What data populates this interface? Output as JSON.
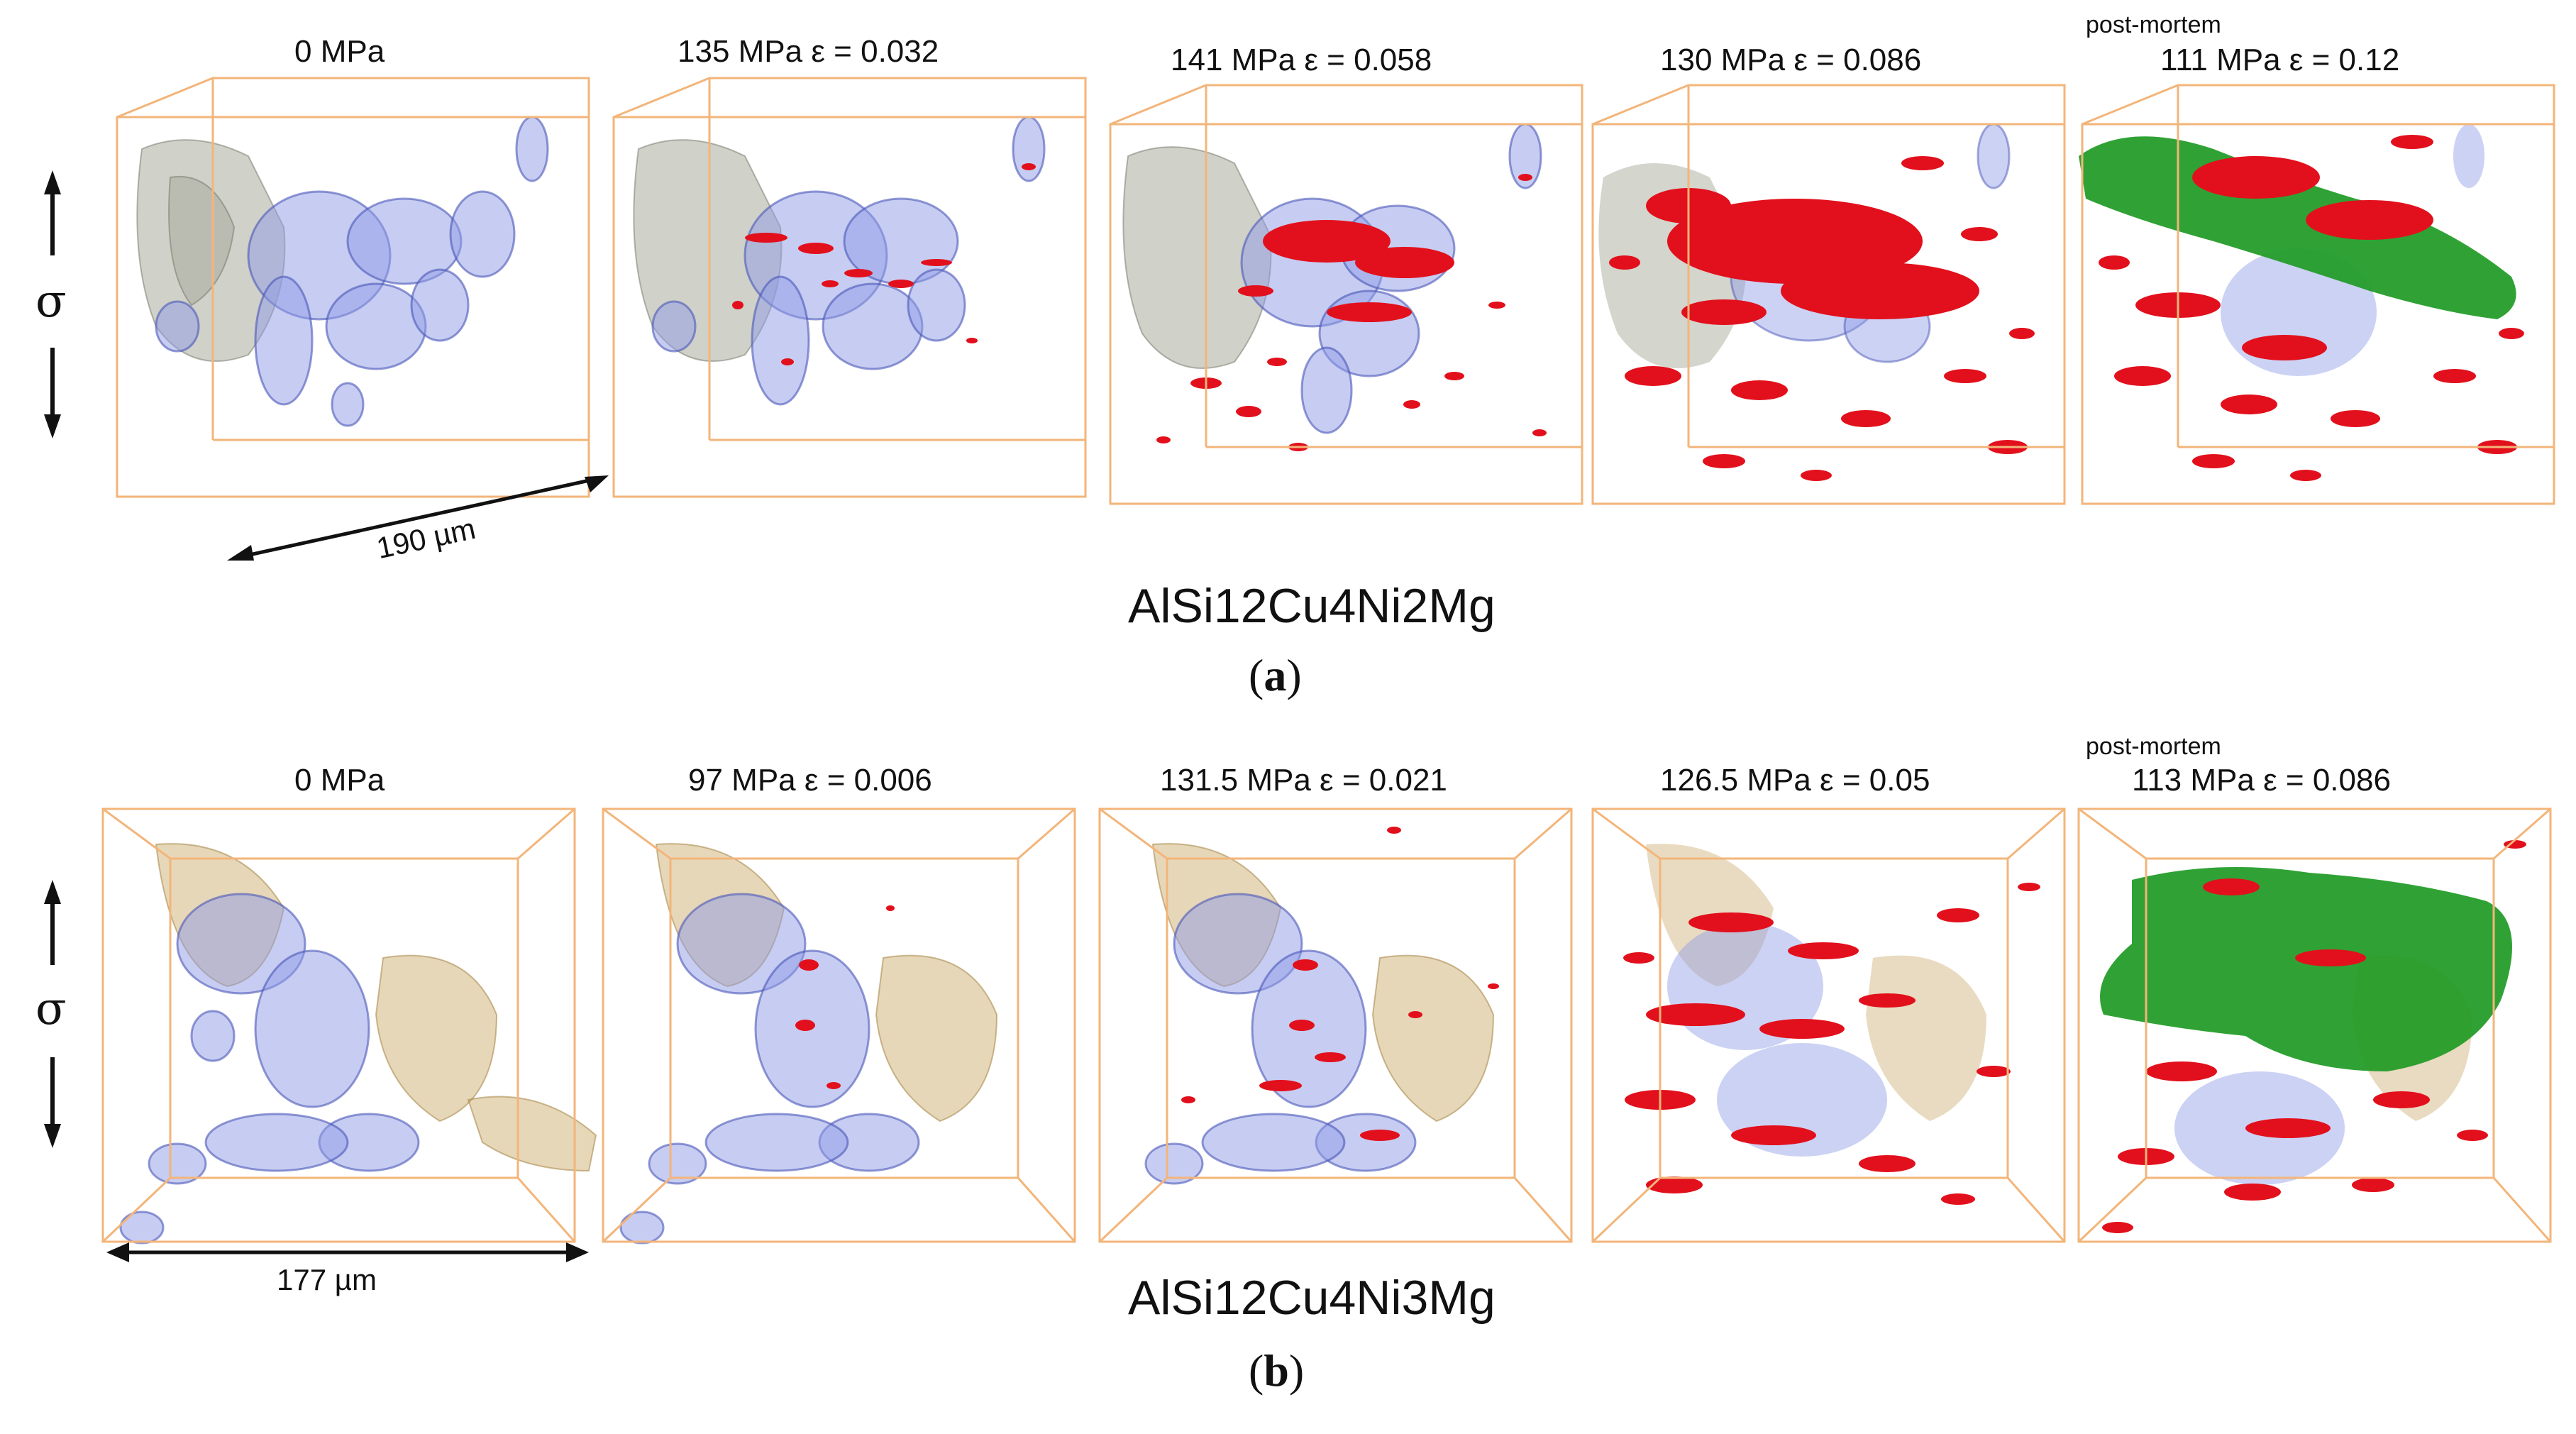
{
  "figure": {
    "row_a": {
      "alloy": "AlSi12Cu4Ni2Mg",
      "subfigure_letter": "a",
      "axis_symbol": "σ",
      "scale_bar": "190 µm",
      "panels": [
        {
          "label": "0 MPa",
          "postmortem": ""
        },
        {
          "label": "135 MPa  ε = 0.032",
          "postmortem": ""
        },
        {
          "label": "141 MPa  ε = 0.058",
          "postmortem": ""
        },
        {
          "label": "130 MPa  ε = 0.086",
          "postmortem": ""
        },
        {
          "label": "111 MPa  ε = 0.12",
          "postmortem": "post-mortem"
        }
      ]
    },
    "row_b": {
      "alloy": "AlSi12Cu4Ni3Mg",
      "subfigure_letter": "b",
      "axis_symbol": "σ",
      "scale_bar": "177 µm",
      "panels": [
        {
          "label": "0 MPa",
          "postmortem": ""
        },
        {
          "label": "97 MPa  ε = 0.006",
          "postmortem": ""
        },
        {
          "label": "131.5 MPa  ε = 0.021",
          "postmortem": ""
        },
        {
          "label": "126.5 MPa  ε = 0.05",
          "postmortem": ""
        },
        {
          "label": "113 MPa  ε = 0.086",
          "postmortem": "post-mortem"
        }
      ]
    },
    "colors": {
      "box_edge": "#f3b57a",
      "pores": "#8f9be6",
      "gray_phase": "#a9ab9c",
      "tan_phase": "#c9a664",
      "cracks": "#e2101c",
      "fracture": "#1e9a24"
    }
  }
}
